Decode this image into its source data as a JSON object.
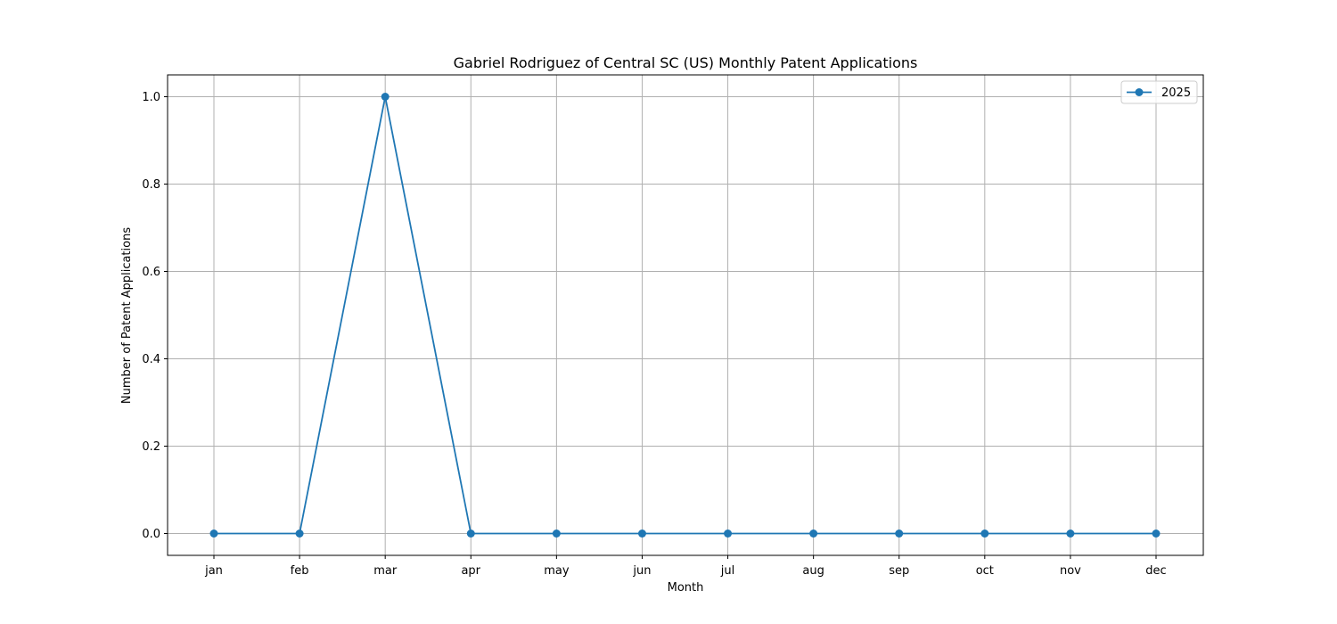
{
  "chart_data": {
    "type": "line",
    "title": "Gabriel Rodriguez of Central SC (US) Monthly Patent Applications",
    "xlabel": "Month",
    "ylabel": "Number of Patent Applications",
    "categories": [
      "jan",
      "feb",
      "mar",
      "apr",
      "may",
      "jun",
      "jul",
      "aug",
      "sep",
      "oct",
      "nov",
      "dec"
    ],
    "series": [
      {
        "name": "2025",
        "values": [
          0,
          0,
          1,
          0,
          0,
          0,
          0,
          0,
          0,
          0,
          0,
          0
        ],
        "color": "#1f77b4",
        "marker": "circle"
      }
    ],
    "yticks": [
      0.0,
      0.2,
      0.4,
      0.6,
      0.8,
      1.0
    ],
    "ytick_labels": [
      "0.0",
      "0.2",
      "0.4",
      "0.6",
      "0.8",
      "1.0"
    ],
    "ylim": [
      -0.05,
      1.05
    ],
    "grid": true,
    "legend_position": "top-right"
  }
}
